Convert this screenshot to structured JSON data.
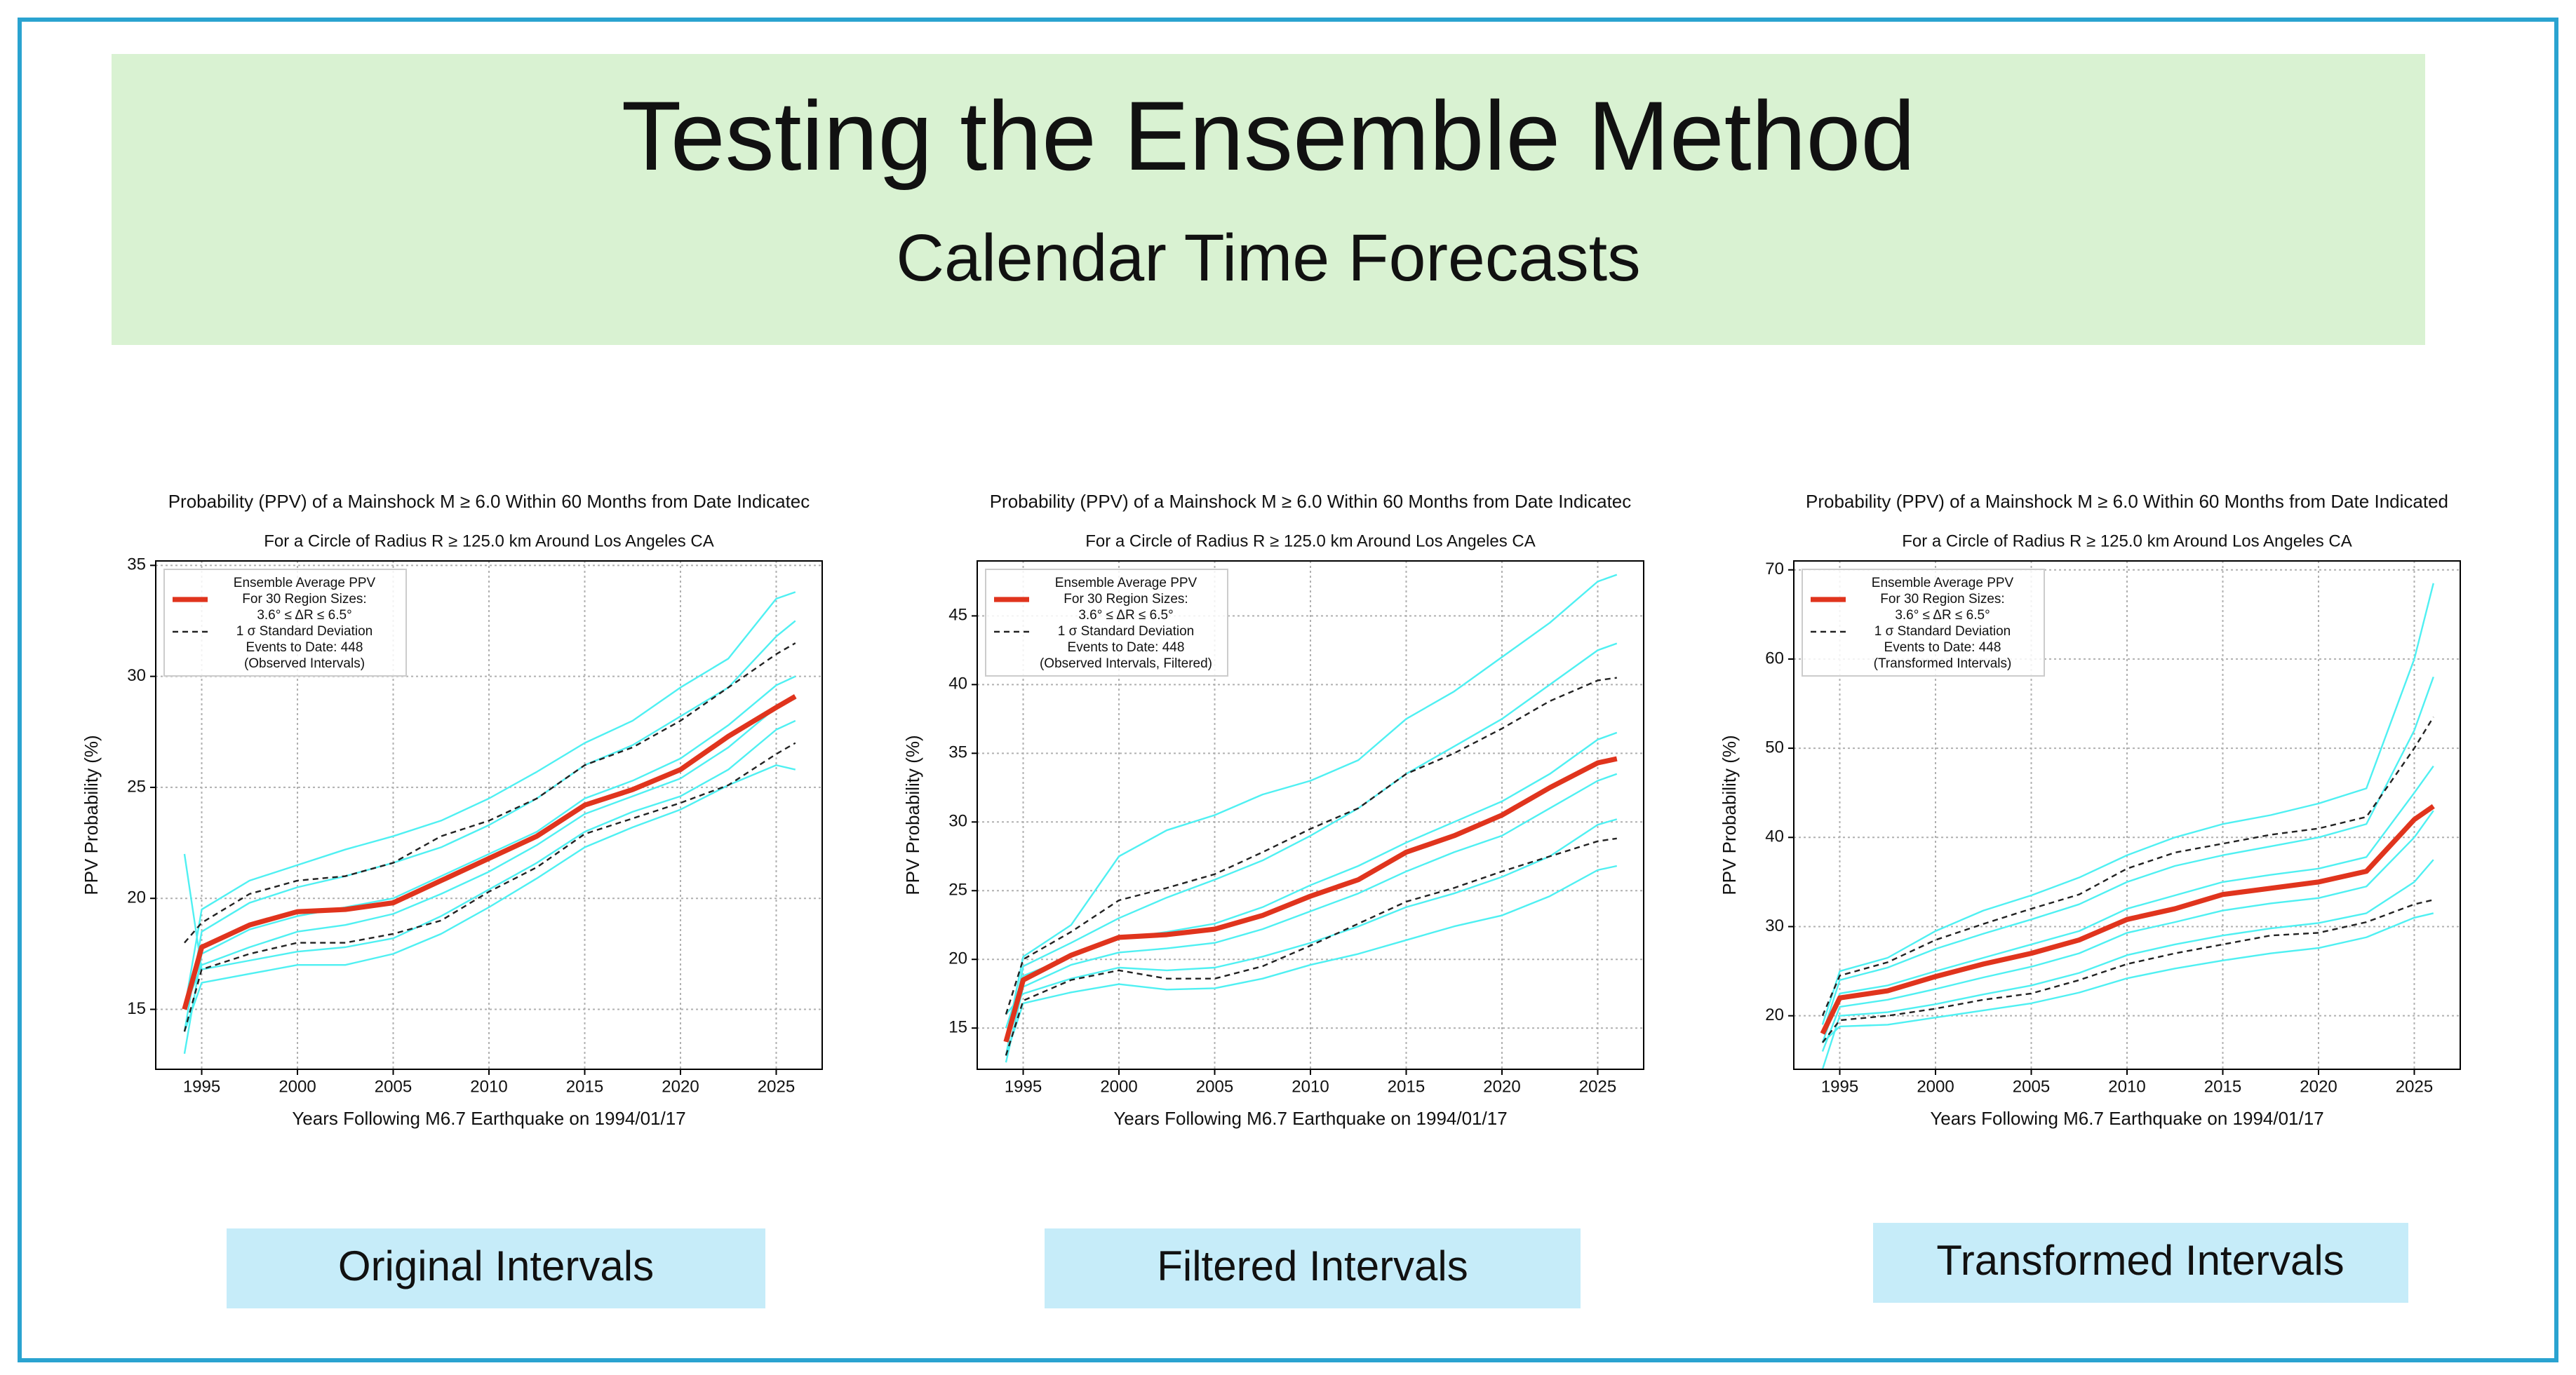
{
  "slide": {
    "title": "Testing the Ensemble Method",
    "subtitle": "Calendar Time Forecasts",
    "captions": [
      "Original Intervals",
      "Filtered Intervals",
      "Transformed Intervals"
    ]
  },
  "chart_data": [
    {
      "type": "line",
      "title": "Probability (PPV) of a Mainshock M ≥ 6.0 Within 60 Months from Date Indicatec",
      "subtitle": "For a Circle of Radius R ≥ 125.0 km Around Los Angeles CA",
      "xlabel": "Years Following M6.7 Earthquake on 1994/01/17",
      "ylabel": "PPV Probability (%)",
      "grid": true,
      "legend": "upper left",
      "legend_note": [
        "Events to Date: 448",
        "(Observed Intervals)"
      ],
      "x": [
        1994.1,
        1995,
        1997.5,
        2000,
        2002.5,
        2005,
        2007.5,
        2010,
        2012.5,
        2015,
        2017.5,
        2020,
        2022.5,
        2025,
        2026
      ],
      "xlim": [
        1992.6,
        2027.4
      ],
      "xticks": [
        1995,
        2000,
        2005,
        2010,
        2015,
        2020,
        2025
      ],
      "ylim": [
        12.3,
        35.2
      ],
      "yticks": [
        15,
        20,
        25,
        30,
        35
      ],
      "series": [
        {
          "color": "#4ff0f2",
          "values": [
            15,
            19.5,
            20.8,
            21.5,
            22.2,
            22.8,
            23.5,
            24.5,
            25.7,
            27.0,
            28.0,
            29.5,
            30.8,
            33.5,
            33.8
          ]
        },
        {
          "color": "#4ff0f2",
          "values": [
            14,
            18.5,
            19.8,
            20.5,
            21.0,
            21.6,
            22.3,
            23.3,
            24.5,
            26.0,
            26.9,
            28.2,
            29.5,
            31.8,
            32.5
          ]
        },
        {
          "color": "#4ff0f2",
          "values": [
            13,
            17.5,
            18.6,
            19.2,
            19.6,
            20.0,
            21.0,
            22.0,
            23.0,
            24.5,
            25.3,
            26.3,
            27.8,
            29.6,
            30.0
          ]
        },
        {
          "color": "#4ff0f2",
          "values": [
            15,
            17.0,
            17.8,
            18.5,
            18.8,
            19.3,
            20.2,
            21.2,
            22.4,
            23.8,
            24.6,
            25.4,
            26.8,
            28.6,
            29.0
          ]
        },
        {
          "color": "#4ff0f2",
          "values": [
            22,
            16.8,
            17.2,
            17.6,
            17.8,
            18.2,
            19.2,
            20.4,
            21.6,
            23.0,
            23.9,
            24.6,
            25.8,
            27.6,
            28.0
          ]
        },
        {
          "color": "#4ff0f2",
          "values": [
            14,
            16.2,
            16.6,
            17.0,
            17.0,
            17.5,
            18.4,
            19.6,
            20.9,
            22.3,
            23.2,
            24.0,
            25.1,
            26.0,
            25.8
          ]
        },
        {
          "name": "Ensemble Average PPV",
          "note": [
            "For 30 Region Sizes:",
            "3.6° ≤ ΔR ≤ 6.5°"
          ],
          "color": "#e0341d",
          "linewidth": 3,
          "values": [
            15,
            17.8,
            18.8,
            19.4,
            19.5,
            19.8,
            20.8,
            21.8,
            22.8,
            24.2,
            24.9,
            25.8,
            27.3,
            28.6,
            29.1
          ]
        },
        {
          "name": "1 σ Standard Deviation",
          "color": "#222222",
          "dashed": true,
          "values": [
            18,
            18.9,
            20.2,
            20.8,
            21.0,
            21.6,
            22.8,
            23.5,
            24.5,
            26.0,
            26.8,
            28.0,
            29.5,
            31,
            31.5
          ]
        },
        {
          "color": "#222222",
          "dashed": true,
          "values": [
            14,
            16.8,
            17.5,
            18.0,
            18.0,
            18.4,
            19.0,
            20.3,
            21.4,
            22.9,
            23.6,
            24.3,
            25.1,
            26.5,
            27.0
          ]
        }
      ]
    },
    {
      "type": "line",
      "title": "Probability (PPV) of a Mainshock M ≥ 6.0 Within 60 Months from Date Indicatec",
      "subtitle": "For a Circle of Radius R ≥ 125.0 km Around Los Angeles CA",
      "xlabel": "Years Following M6.7 Earthquake on 1994/01/17",
      "ylabel": "PPV Probability (%)",
      "grid": true,
      "legend": "upper left",
      "legend_note": [
        "Events to Date: 448",
        "(Observed Intervals, Filtered)"
      ],
      "x": [
        1994.1,
        1995,
        1997.5,
        2000,
        2002.5,
        2005,
        2007.5,
        2010,
        2012.5,
        2015,
        2017.5,
        2020,
        2022.5,
        2025,
        2026
      ],
      "xlim": [
        1992.6,
        2027.4
      ],
      "xticks": [
        1995,
        2000,
        2005,
        2010,
        2015,
        2020,
        2025
      ],
      "ylim": [
        12,
        49
      ],
      "yticks": [
        15,
        20,
        25,
        30,
        35,
        40,
        45
      ],
      "series": [
        {
          "color": "#4ff0f2",
          "values": [
            14,
            20.2,
            22.5,
            27.5,
            29.4,
            30.5,
            32.0,
            33.0,
            34.5,
            37.5,
            39.5,
            42.0,
            44.5,
            47.5,
            48.0
          ]
        },
        {
          "color": "#4ff0f2",
          "values": [
            13,
            19.5,
            21.2,
            23.0,
            24.5,
            25.8,
            27.2,
            29.0,
            31.0,
            33.5,
            35.5,
            37.5,
            40.0,
            42.5,
            43.0
          ]
        },
        {
          "color": "#4ff0f2",
          "values": [
            15,
            18.8,
            20.2,
            21.5,
            22.0,
            22.6,
            23.8,
            25.4,
            26.8,
            28.5,
            30.0,
            31.5,
            33.5,
            36.0,
            36.5
          ]
        },
        {
          "color": "#4ff0f2",
          "values": [
            12.5,
            18.0,
            19.6,
            20.5,
            20.8,
            21.2,
            22.2,
            23.5,
            24.8,
            26.4,
            27.8,
            29.0,
            31.0,
            33.0,
            33.5
          ]
        },
        {
          "color": "#4ff0f2",
          "values": [
            16,
            17.5,
            18.6,
            19.4,
            19.2,
            19.4,
            20.2,
            21.2,
            22.4,
            23.8,
            24.8,
            26.0,
            27.5,
            29.8,
            30.2
          ]
        },
        {
          "color": "#4ff0f2",
          "values": [
            13,
            16.8,
            17.6,
            18.2,
            17.8,
            17.9,
            18.6,
            19.6,
            20.4,
            21.4,
            22.4,
            23.2,
            24.6,
            26.5,
            26.8
          ]
        },
        {
          "name": "Ensemble Average PPV",
          "note": [
            "For 30 Region Sizes:",
            "3.6° ≤ ΔR ≤ 6.5°"
          ],
          "color": "#e0341d",
          "linewidth": 3,
          "values": [
            14,
            18.5,
            20.3,
            21.6,
            21.8,
            22.2,
            23.2,
            24.6,
            25.8,
            27.8,
            29.0,
            30.5,
            32.5,
            34.3,
            34.6
          ]
        },
        {
          "name": "1 σ Standard Deviation",
          "color": "#222222",
          "dashed": true,
          "values": [
            16,
            20,
            22,
            24.3,
            25.2,
            26.2,
            27.8,
            29.5,
            31,
            33.5,
            35,
            36.8,
            38.8,
            40.3,
            40.5
          ]
        },
        {
          "color": "#222222",
          "dashed": true,
          "values": [
            13,
            17,
            18.5,
            19.2,
            18.6,
            18.6,
            19.5,
            21,
            22.6,
            24.2,
            25.2,
            26.4,
            27.5,
            28.6,
            28.8
          ]
        }
      ]
    },
    {
      "type": "line",
      "title": "Probability (PPV) of a Mainshock M ≥ 6.0 Within 60 Months from Date Indicated",
      "subtitle": "For a Circle of Radius R ≥ 125.0 km Around Los Angeles CA",
      "xlabel": "Years Following M6.7 Earthquake on 1994/01/17",
      "ylabel": "PPV Probability (%)",
      "grid": true,
      "legend": "upper left",
      "legend_note": [
        "Events to Date: 448",
        "(Transformed Intervals)"
      ],
      "x": [
        1994.1,
        1995,
        1997.5,
        2000,
        2002.5,
        2005,
        2007.5,
        2010,
        2012.5,
        2015,
        2017.5,
        2020,
        2022.5,
        2025,
        2026
      ],
      "xlim": [
        1992.6,
        2027.4
      ],
      "xticks": [
        1995,
        2000,
        2005,
        2010,
        2015,
        2020,
        2025
      ],
      "ylim": [
        14,
        71
      ],
      "yticks": [
        20,
        30,
        40,
        50,
        60,
        70
      ],
      "series": [
        {
          "color": "#4ff0f2",
          "values": [
            19,
            25.0,
            26.5,
            29.5,
            31.8,
            33.5,
            35.5,
            38.0,
            40.0,
            41.5,
            42.5,
            43.8,
            45.5,
            60,
            68.5
          ]
        },
        {
          "color": "#4ff0f2",
          "values": [
            18,
            24.0,
            25.4,
            27.5,
            29.2,
            30.8,
            32.5,
            35.0,
            36.8,
            38.0,
            39.0,
            40.0,
            41.5,
            52,
            58
          ]
        },
        {
          "color": "#4ff0f2",
          "values": [
            17,
            22.5,
            23.4,
            25.0,
            26.5,
            28.0,
            29.5,
            32.0,
            33.5,
            35.0,
            35.8,
            36.5,
            37.8,
            45,
            48
          ]
        },
        {
          "color": "#4ff0f2",
          "values": [
            16,
            21.0,
            21.8,
            23.0,
            24.3,
            25.5,
            27.0,
            29.3,
            30.5,
            31.8,
            32.6,
            33.2,
            34.5,
            40,
            43
          ]
        },
        {
          "color": "#4ff0f2",
          "values": [
            14,
            20.0,
            20.4,
            21.3,
            22.4,
            23.4,
            24.8,
            26.8,
            28.0,
            29.0,
            29.8,
            30.4,
            31.5,
            35,
            37.5
          ]
        },
        {
          "color": "#4ff0f2",
          "values": [
            17,
            18.8,
            19.0,
            19.8,
            20.6,
            21.4,
            22.6,
            24.2,
            25.3,
            26.2,
            27.0,
            27.6,
            28.8,
            31,
            31.5
          ]
        },
        {
          "name": "Ensemble Average PPV",
          "note": [
            "For 30 Region Sizes:",
            "3.6° ≤ ΔR ≤ 6.5°"
          ],
          "color": "#e0341d",
          "linewidth": 3,
          "values": [
            18,
            22,
            22.8,
            24.4,
            25.8,
            27,
            28.5,
            30.8,
            32,
            33.6,
            34.3,
            35,
            36.2,
            42,
            43.5
          ]
        },
        {
          "name": "1 σ Standard Deviation",
          "color": "#222222",
          "dashed": true,
          "values": [
            20,
            24.5,
            26,
            28.5,
            30.3,
            32,
            33.6,
            36.5,
            38.3,
            39.3,
            40.3,
            41,
            42.3,
            50,
            53.5
          ]
        },
        {
          "color": "#222222",
          "dashed": true,
          "values": [
            17,
            19.5,
            20,
            20.8,
            21.8,
            22.5,
            24,
            25.8,
            27,
            28,
            29,
            29.3,
            30.5,
            32.5,
            33
          ]
        }
      ]
    }
  ]
}
